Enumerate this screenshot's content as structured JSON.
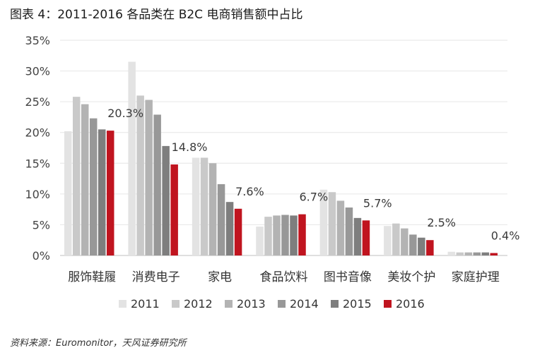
{
  "header": {
    "title": "图表 4：2011-2016 各品类在 B2C 电商销售额中占比"
  },
  "source": "资料来源：Euromonitor，天风证券研究所",
  "chart_data": {
    "type": "bar",
    "categories": [
      "服饰鞋履",
      "消费电子",
      "家电",
      "食品饮料",
      "图书音像",
      "美妆个护",
      "家庭护理"
    ],
    "series": [
      {
        "name": "2011",
        "color": "#e3e3e3",
        "values": [
          20.2,
          31.5,
          15.9,
          4.7,
          10.7,
          4.8,
          0.6
        ]
      },
      {
        "name": "2012",
        "color": "#c9c9c9",
        "values": [
          25.8,
          26.0,
          15.9,
          6.3,
          10.3,
          5.2,
          0.5
        ]
      },
      {
        "name": "2013",
        "color": "#b3b3b3",
        "values": [
          24.6,
          25.3,
          15.0,
          6.5,
          8.9,
          4.4,
          0.5
        ]
      },
      {
        "name": "2014",
        "color": "#989898",
        "values": [
          22.3,
          22.9,
          11.6,
          6.6,
          7.8,
          3.4,
          0.5
        ]
      },
      {
        "name": "2015",
        "color": "#7e7e7e",
        "values": [
          20.5,
          17.8,
          8.7,
          6.5,
          6.1,
          2.9,
          0.5
        ]
      },
      {
        "name": "2016",
        "color": "#c0141f",
        "values": [
          20.3,
          14.8,
          7.6,
          6.7,
          5.7,
          2.5,
          0.4
        ]
      }
    ],
    "data_labels": [
      "20.3%",
      "14.8%",
      "7.6%",
      "6.7%",
      "5.7%",
      "2.5%",
      "0.4%"
    ],
    "yticks": [
      "0%",
      "5%",
      "10%",
      "15%",
      "20%",
      "25%",
      "30%",
      "35%"
    ],
    "ylim": [
      0,
      35
    ],
    "grid": true,
    "legend_position": "bottom"
  }
}
